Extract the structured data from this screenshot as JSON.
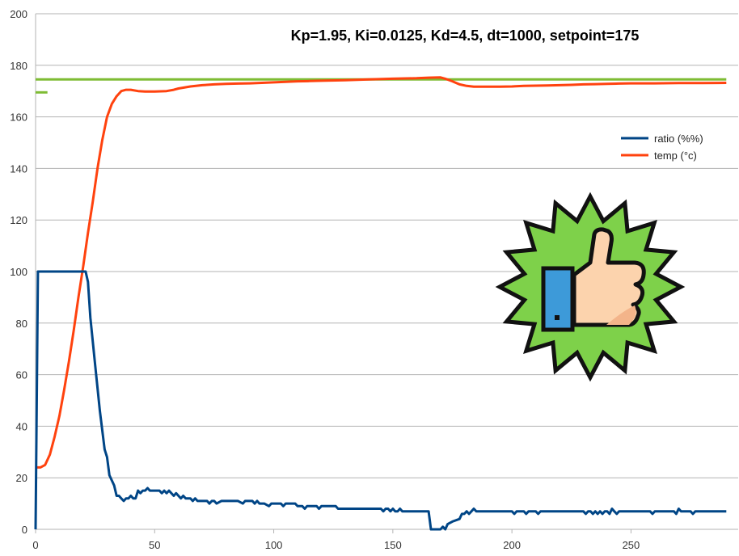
{
  "chart_data": {
    "type": "line",
    "title": "Kp=1.95, Ki=0.0125, Kd=4.5, dt=1000, setpoint=175",
    "xlabel": "",
    "ylabel": "",
    "xlim": [
      0,
      295
    ],
    "ylim": [
      0,
      200
    ],
    "xticks": [
      0,
      50,
      100,
      150,
      200,
      250
    ],
    "yticks": [
      0,
      20,
      40,
      60,
      80,
      100,
      120,
      140,
      160,
      180,
      200
    ],
    "grid": true,
    "legend_position": "right",
    "series": [
      {
        "name": "ratio (%%)",
        "color": "#004586",
        "points": [
          [
            0,
            0
          ],
          [
            1,
            100
          ],
          [
            5,
            100
          ],
          [
            10,
            100
          ],
          [
            15,
            100
          ],
          [
            20,
            100
          ],
          [
            21,
            100
          ],
          [
            22,
            96
          ],
          [
            23,
            82
          ],
          [
            25,
            64
          ],
          [
            27,
            46
          ],
          [
            29,
            31
          ],
          [
            30,
            28
          ],
          [
            31,
            21
          ],
          [
            33,
            17
          ],
          [
            34,
            13
          ],
          [
            35,
            13
          ],
          [
            36,
            12
          ],
          [
            37,
            11
          ],
          [
            38,
            12
          ],
          [
            39,
            12
          ],
          [
            40,
            13
          ],
          [
            41,
            12
          ],
          [
            42,
            12
          ],
          [
            43,
            15
          ],
          [
            44,
            14
          ],
          [
            45,
            15
          ],
          [
            46,
            15
          ],
          [
            47,
            16
          ],
          [
            48,
            15
          ],
          [
            50,
            15
          ],
          [
            52,
            15
          ],
          [
            53,
            14
          ],
          [
            54,
            15
          ],
          [
            55,
            14
          ],
          [
            56,
            15
          ],
          [
            57,
            14
          ],
          [
            58,
            13
          ],
          [
            59,
            14
          ],
          [
            60,
            13
          ],
          [
            61,
            12
          ],
          [
            62,
            13
          ],
          [
            63,
            12
          ],
          [
            65,
            12
          ],
          [
            66,
            11
          ],
          [
            67,
            12
          ],
          [
            68,
            11
          ],
          [
            70,
            11
          ],
          [
            72,
            11
          ],
          [
            73,
            10
          ],
          [
            74,
            11
          ],
          [
            75,
            11
          ],
          [
            76,
            10
          ],
          [
            78,
            11
          ],
          [
            80,
            11
          ],
          [
            85,
            11
          ],
          [
            87,
            10
          ],
          [
            88,
            11
          ],
          [
            91,
            11
          ],
          [
            92,
            10
          ],
          [
            93,
            11
          ],
          [
            94,
            10
          ],
          [
            95,
            10
          ],
          [
            96,
            10
          ],
          [
            98,
            9
          ],
          [
            99,
            10
          ],
          [
            100,
            10
          ],
          [
            103,
            10
          ],
          [
            104,
            9
          ],
          [
            105,
            10
          ],
          [
            109,
            10
          ],
          [
            110,
            9
          ],
          [
            112,
            9
          ],
          [
            113,
            8
          ],
          [
            114,
            9
          ],
          [
            118,
            9
          ],
          [
            119,
            8
          ],
          [
            120,
            9
          ],
          [
            126,
            9
          ],
          [
            127,
            8
          ],
          [
            130,
            8
          ],
          [
            135,
            8
          ],
          [
            140,
            8
          ],
          [
            145,
            8
          ],
          [
            146,
            7
          ],
          [
            147,
            8
          ],
          [
            148,
            8
          ],
          [
            149,
            7
          ],
          [
            150,
            8
          ],
          [
            151,
            7
          ],
          [
            152,
            7
          ],
          [
            153,
            8
          ],
          [
            154,
            7
          ],
          [
            155,
            7
          ],
          [
            156,
            7
          ],
          [
            157,
            7
          ],
          [
            158,
            7
          ],
          [
            160,
            7
          ],
          [
            162,
            7
          ],
          [
            163,
            7
          ],
          [
            164,
            7
          ],
          [
            165,
            7
          ],
          [
            166,
            0
          ],
          [
            168,
            0
          ],
          [
            170,
            0
          ],
          [
            171,
            1
          ],
          [
            172,
            0
          ],
          [
            173,
            2
          ],
          [
            175,
            3
          ],
          [
            178,
            4
          ],
          [
            179,
            6
          ],
          [
            180,
            6
          ],
          [
            181,
            7
          ],
          [
            182,
            6
          ],
          [
            183,
            7
          ],
          [
            184,
            8
          ],
          [
            185,
            7
          ],
          [
            190,
            7
          ],
          [
            195,
            7
          ],
          [
            200,
            7
          ],
          [
            201,
            6
          ],
          [
            202,
            7
          ],
          [
            205,
            7
          ],
          [
            206,
            6
          ],
          [
            207,
            7
          ],
          [
            210,
            7
          ],
          [
            211,
            6
          ],
          [
            212,
            7
          ],
          [
            215,
            7
          ],
          [
            220,
            7
          ],
          [
            225,
            7
          ],
          [
            230,
            7
          ],
          [
            231,
            6
          ],
          [
            232,
            7
          ],
          [
            233,
            7
          ],
          [
            234,
            6
          ],
          [
            235,
            7
          ],
          [
            236,
            6
          ],
          [
            237,
            7
          ],
          [
            238,
            6
          ],
          [
            239,
            7
          ],
          [
            240,
            7
          ],
          [
            241,
            6
          ],
          [
            242,
            8
          ],
          [
            243,
            7
          ],
          [
            244,
            6
          ],
          [
            245,
            7
          ],
          [
            246,
            7
          ],
          [
            248,
            7
          ],
          [
            250,
            7
          ],
          [
            255,
            7
          ],
          [
            258,
            7
          ],
          [
            259,
            6
          ],
          [
            260,
            7
          ],
          [
            265,
            7
          ],
          [
            268,
            7
          ],
          [
            269,
            6
          ],
          [
            270,
            8
          ],
          [
            271,
            7
          ],
          [
            272,
            7
          ],
          [
            273,
            7
          ],
          [
            275,
            7
          ],
          [
            276,
            6
          ],
          [
            277,
            7
          ],
          [
            280,
            7
          ],
          [
            285,
            7
          ],
          [
            290,
            7
          ]
        ]
      },
      {
        "name": "temp (°c)",
        "color": "#ff420e",
        "points": [
          [
            0,
            24
          ],
          [
            2,
            24
          ],
          [
            4,
            25
          ],
          [
            6,
            29
          ],
          [
            8,
            36
          ],
          [
            10,
            44
          ],
          [
            12,
            54
          ],
          [
            14,
            65
          ],
          [
            16,
            77
          ],
          [
            18,
            90
          ],
          [
            20,
            102
          ],
          [
            22,
            115
          ],
          [
            24,
            127
          ],
          [
            26,
            140
          ],
          [
            28,
            151
          ],
          [
            30,
            160
          ],
          [
            32,
            165
          ],
          [
            34,
            168
          ],
          [
            36,
            170
          ],
          [
            38,
            170.5
          ],
          [
            40,
            170.5
          ],
          [
            43,
            170
          ],
          [
            46,
            169.8
          ],
          [
            50,
            169.8
          ],
          [
            55,
            170
          ],
          [
            58,
            170.5
          ],
          [
            60,
            171
          ],
          [
            65,
            171.8
          ],
          [
            70,
            172.3
          ],
          [
            75,
            172.6
          ],
          [
            80,
            172.8
          ],
          [
            85,
            172.9
          ],
          [
            90,
            173
          ],
          [
            95,
            173.2
          ],
          [
            100,
            173.4
          ],
          [
            105,
            173.6
          ],
          [
            110,
            173.8
          ],
          [
            115,
            173.9
          ],
          [
            120,
            174
          ],
          [
            130,
            174.2
          ],
          [
            140,
            174.5
          ],
          [
            150,
            174.8
          ],
          [
            160,
            175
          ],
          [
            165,
            175.2
          ],
          [
            170,
            175.3
          ],
          [
            172,
            174.8
          ],
          [
            175,
            173.8
          ],
          [
            178,
            172.6
          ],
          [
            181,
            172
          ],
          [
            184,
            171.7
          ],
          [
            190,
            171.7
          ],
          [
            195,
            171.7
          ],
          [
            200,
            171.8
          ],
          [
            205,
            172
          ],
          [
            210,
            172.1
          ],
          [
            215,
            172.2
          ],
          [
            220,
            172.3
          ],
          [
            225,
            172.4
          ],
          [
            230,
            172.6
          ],
          [
            235,
            172.7
          ],
          [
            240,
            172.8
          ],
          [
            245,
            172.9
          ],
          [
            250,
            173
          ],
          [
            260,
            173
          ],
          [
            270,
            173.1
          ],
          [
            280,
            173.1
          ],
          [
            290,
            173.2
          ]
        ]
      },
      {
        "name": "",
        "color": "#7ebc34",
        "points": [
          [
            0,
            174.5
          ],
          [
            290,
            174.5
          ]
        ]
      },
      {
        "name": "",
        "color": "#7ebc34",
        "points": [
          [
            0,
            169.5
          ],
          [
            5,
            169.5
          ]
        ]
      }
    ]
  }
}
